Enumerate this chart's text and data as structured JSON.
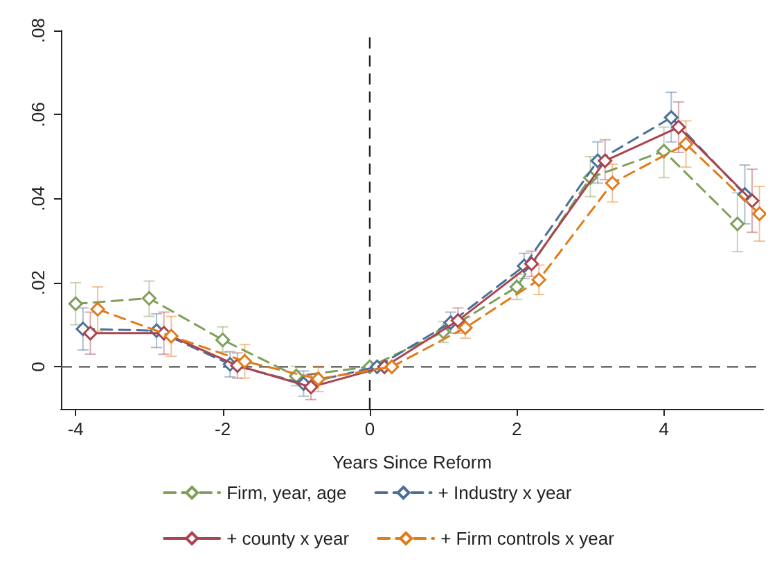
{
  "chart_data": {
    "type": "line",
    "xlabel": "Years Since Reform",
    "xlim": [
      -4.2,
      5.35
    ],
    "xticks": [
      -4,
      -2,
      0,
      2,
      4
    ],
    "ylim": [
      -0.01,
      0.08
    ],
    "yticks": [
      {
        "value": 0,
        "label": "0"
      },
      {
        "value": 0.02,
        "label": ".02"
      },
      {
        "value": 0.04,
        "label": ".04"
      },
      {
        "value": 0.06,
        "label": ".06"
      },
      {
        "value": 0.08,
        "label": ".08"
      }
    ],
    "grid": false,
    "legend": "bottom",
    "marker": "diamond",
    "ref_lines": [
      {
        "axis": "x",
        "value": 0,
        "line_style": "dashed",
        "color": "#222222"
      },
      {
        "axis": "y",
        "value": 0,
        "line_style": "dashed",
        "color": "#555555"
      }
    ],
    "series": [
      {
        "name": "Firm, year, age",
        "color": "#7f9f5a",
        "line_style": "dashed",
        "x": [
          -4,
          -3,
          -2,
          -1,
          0,
          1,
          2,
          3,
          4,
          5
        ],
        "values": [
          0.015,
          0.0163,
          0.0064,
          -0.0022,
          0,
          0.0083,
          0.019,
          0.045,
          0.0513,
          0.034
        ],
        "errors": [
          [
            0.01,
            0.02
          ],
          [
            0.012,
            0.0204
          ],
          [
            0.0035,
            0.0095
          ],
          [
            -0.0045,
            0.0001
          ],
          null,
          [
            0.0058,
            0.0108
          ],
          [
            0.016,
            0.022
          ],
          [
            0.0405,
            0.05
          ],
          [
            0.045,
            0.057
          ],
          [
            0.0274,
            0.0414
          ]
        ]
      },
      {
        "name": "+ Industry x year",
        "color": "#4a7099",
        "line_style": "dashed",
        "x": [
          -3.9,
          -2.9,
          -1.9,
          -0.9,
          0.1,
          1.1,
          2.1,
          3.1,
          4.1,
          5.1
        ],
        "values": [
          0.009,
          0.0086,
          0.0006,
          -0.004,
          0,
          0.0105,
          0.024,
          0.049,
          0.0593,
          0.041
        ],
        "errors": [
          [
            0.004,
            0.014
          ],
          [
            0.0046,
            0.0126
          ],
          [
            -0.0024,
            0.0036
          ],
          [
            -0.007,
            -0.001
          ],
          null,
          [
            0.008,
            0.013
          ],
          [
            0.021,
            0.027
          ],
          [
            0.0437,
            0.0535
          ],
          [
            0.0535,
            0.0653
          ],
          [
            0.034,
            0.048
          ]
        ]
      },
      {
        "name": "+ county x year",
        "color": "#a9454f",
        "line_style": "solid",
        "x": [
          -3.8,
          -2.8,
          -1.8,
          -0.8,
          0.2,
          1.2,
          2.2,
          3.2,
          4.2,
          5.2
        ],
        "values": [
          0.008,
          0.008,
          0.0003,
          -0.0048,
          0,
          0.011,
          0.0245,
          0.049,
          0.057,
          0.0395
        ],
        "errors": [
          [
            0.003,
            0.013
          ],
          [
            0.003,
            0.013
          ],
          [
            -0.0027,
            0.0033
          ],
          [
            -0.0078,
            -0.0018
          ],
          null,
          [
            0.008,
            0.014
          ],
          [
            0.0215,
            0.0275
          ],
          [
            0.0445,
            0.054
          ],
          [
            0.051,
            0.063
          ],
          [
            0.032,
            0.047
          ]
        ]
      },
      {
        "name": "+ Firm controls x year",
        "color": "#e07b1a",
        "line_style": "dashed",
        "x": [
          -3.7,
          -2.7,
          -1.7,
          -0.7,
          0.3,
          1.3,
          2.3,
          3.3,
          4.3,
          5.3
        ],
        "values": [
          0.0137,
          0.0073,
          0.0013,
          -0.0029,
          0,
          0.0093,
          0.0207,
          0.0437,
          0.053,
          0.0364
        ],
        "errors": [
          [
            0.0085,
            0.019
          ],
          [
            0.0025,
            0.012
          ],
          [
            -0.0027,
            0.0053
          ],
          [
            -0.0059,
            0.0001
          ],
          null,
          [
            0.0068,
            0.0118
          ],
          [
            0.0172,
            0.0242
          ],
          [
            0.0392,
            0.0482
          ],
          [
            0.0475,
            0.0585
          ],
          [
            0.0299,
            0.0429
          ]
        ]
      }
    ]
  }
}
